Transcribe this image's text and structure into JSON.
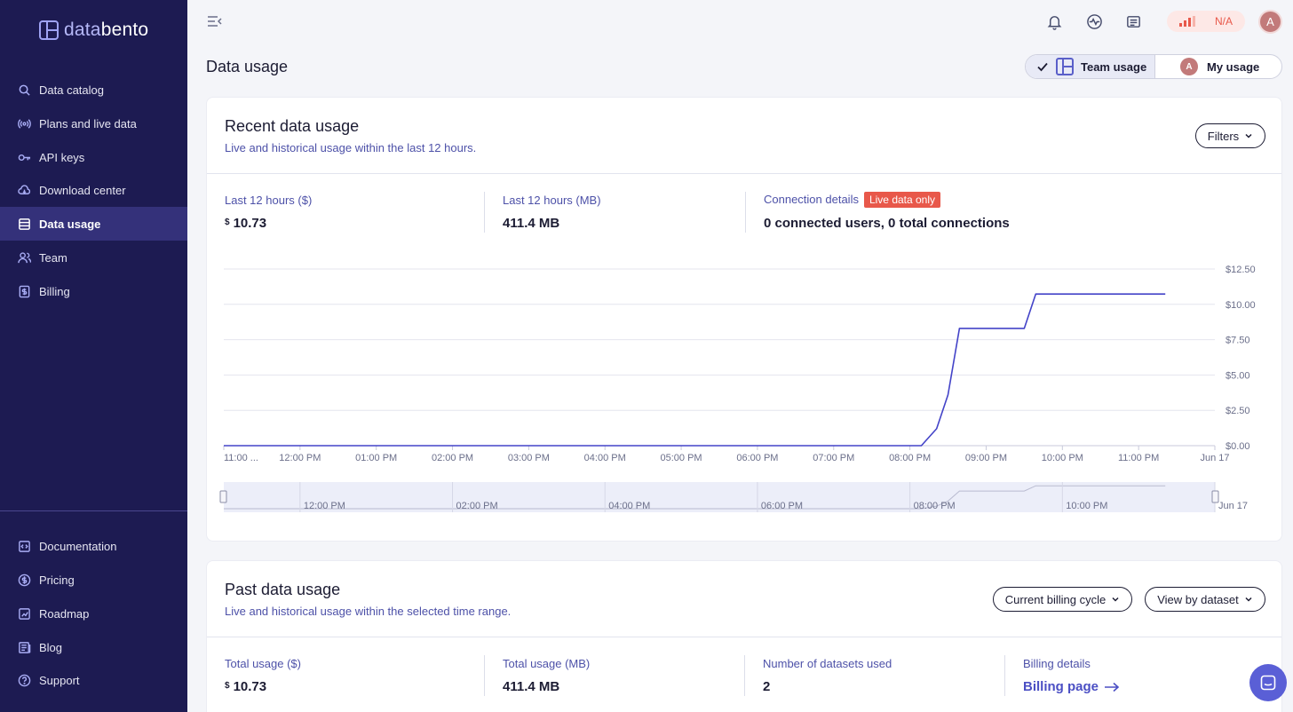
{
  "brand": {
    "prefix": "data",
    "suffix": "bento"
  },
  "sidebar": {
    "items": [
      {
        "label": "Data catalog",
        "icon": "search-icon"
      },
      {
        "label": "Plans and live data",
        "icon": "broadcast-icon"
      },
      {
        "label": "API keys",
        "icon": "key-icon"
      },
      {
        "label": "Download center",
        "icon": "cloud-download-icon"
      },
      {
        "label": "Data usage",
        "icon": "database-icon",
        "active": true
      },
      {
        "label": "Team",
        "icon": "users-icon"
      },
      {
        "label": "Billing",
        "icon": "receipt-icon"
      }
    ],
    "bottom_items": [
      {
        "label": "Documentation",
        "icon": "code-file-icon"
      },
      {
        "label": "Pricing",
        "icon": "dollar-circle-icon"
      },
      {
        "label": "Roadmap",
        "icon": "map-icon"
      },
      {
        "label": "Blog",
        "icon": "newspaper-icon"
      },
      {
        "label": "Support",
        "icon": "help-circle-icon"
      }
    ]
  },
  "topbar": {
    "status_text": "N/A",
    "avatar_initial": "A"
  },
  "page": {
    "title": "Data usage",
    "toggle": {
      "team_label": "Team usage",
      "my_label": "My usage",
      "my_initial": "A"
    }
  },
  "recent": {
    "title": "Recent data usage",
    "subtitle": "Live and historical usage within the last 12 hours.",
    "filters_label": "Filters",
    "stats": {
      "cost_label": "Last 12 hours ($)",
      "cost_currency": "$",
      "cost_value": "10.73",
      "mb_label": "Last 12 hours (MB)",
      "mb_value": "411.4 MB",
      "conn_label": "Connection details",
      "conn_badge": "Live data only",
      "conn_value": "0 connected users, 0 total connections"
    }
  },
  "past": {
    "title": "Past data usage",
    "subtitle": "Live and historical usage within the selected time range.",
    "period_label": "Current billing cycle",
    "view_label": "View by dataset",
    "stats": {
      "cost_label": "Total usage ($)",
      "cost_currency": "$",
      "cost_value": "10.73",
      "mb_label": "Total usage (MB)",
      "mb_value": "411.4 MB",
      "datasets_label": "Number of datasets used",
      "datasets_value": "2",
      "billing_label": "Billing details",
      "billing_link": "Billing page"
    }
  },
  "chart_data": {
    "type": "line",
    "x_tick_labels": [
      "11:00 ...",
      "12:00 PM",
      "01:00 PM",
      "02:00 PM",
      "03:00 PM",
      "04:00 PM",
      "05:00 PM",
      "06:00 PM",
      "07:00 PM",
      "08:00 PM",
      "09:00 PM",
      "10:00 PM",
      "11:00 PM",
      "Jun 17"
    ],
    "y_tick_labels": [
      "$0.00",
      "$2.50",
      "$5.00",
      "$7.50",
      "$10.00",
      "$12.50"
    ],
    "ylim": [
      0,
      12.5
    ],
    "xlim_hours": [
      11,
      24
    ],
    "series": [
      {
        "color": "#4343c8",
        "points": [
          {
            "x": 11.0,
            "y": 0.0
          },
          {
            "x": 20.15,
            "y": 0.0
          },
          {
            "x": 20.35,
            "y": 1.2
          },
          {
            "x": 20.5,
            "y": 3.6
          },
          {
            "x": 20.65,
            "y": 8.3
          },
          {
            "x": 21.5,
            "y": 8.3
          },
          {
            "x": 21.65,
            "y": 10.73
          },
          {
            "x": 23.35,
            "y": 10.73
          }
        ]
      }
    ],
    "navigator_tick_labels": [
      "12:00 PM",
      "02:00 PM",
      "04:00 PM",
      "06:00 PM",
      "08:00 PM",
      "10:00 PM",
      "Jun 17"
    ],
    "grid": true
  }
}
